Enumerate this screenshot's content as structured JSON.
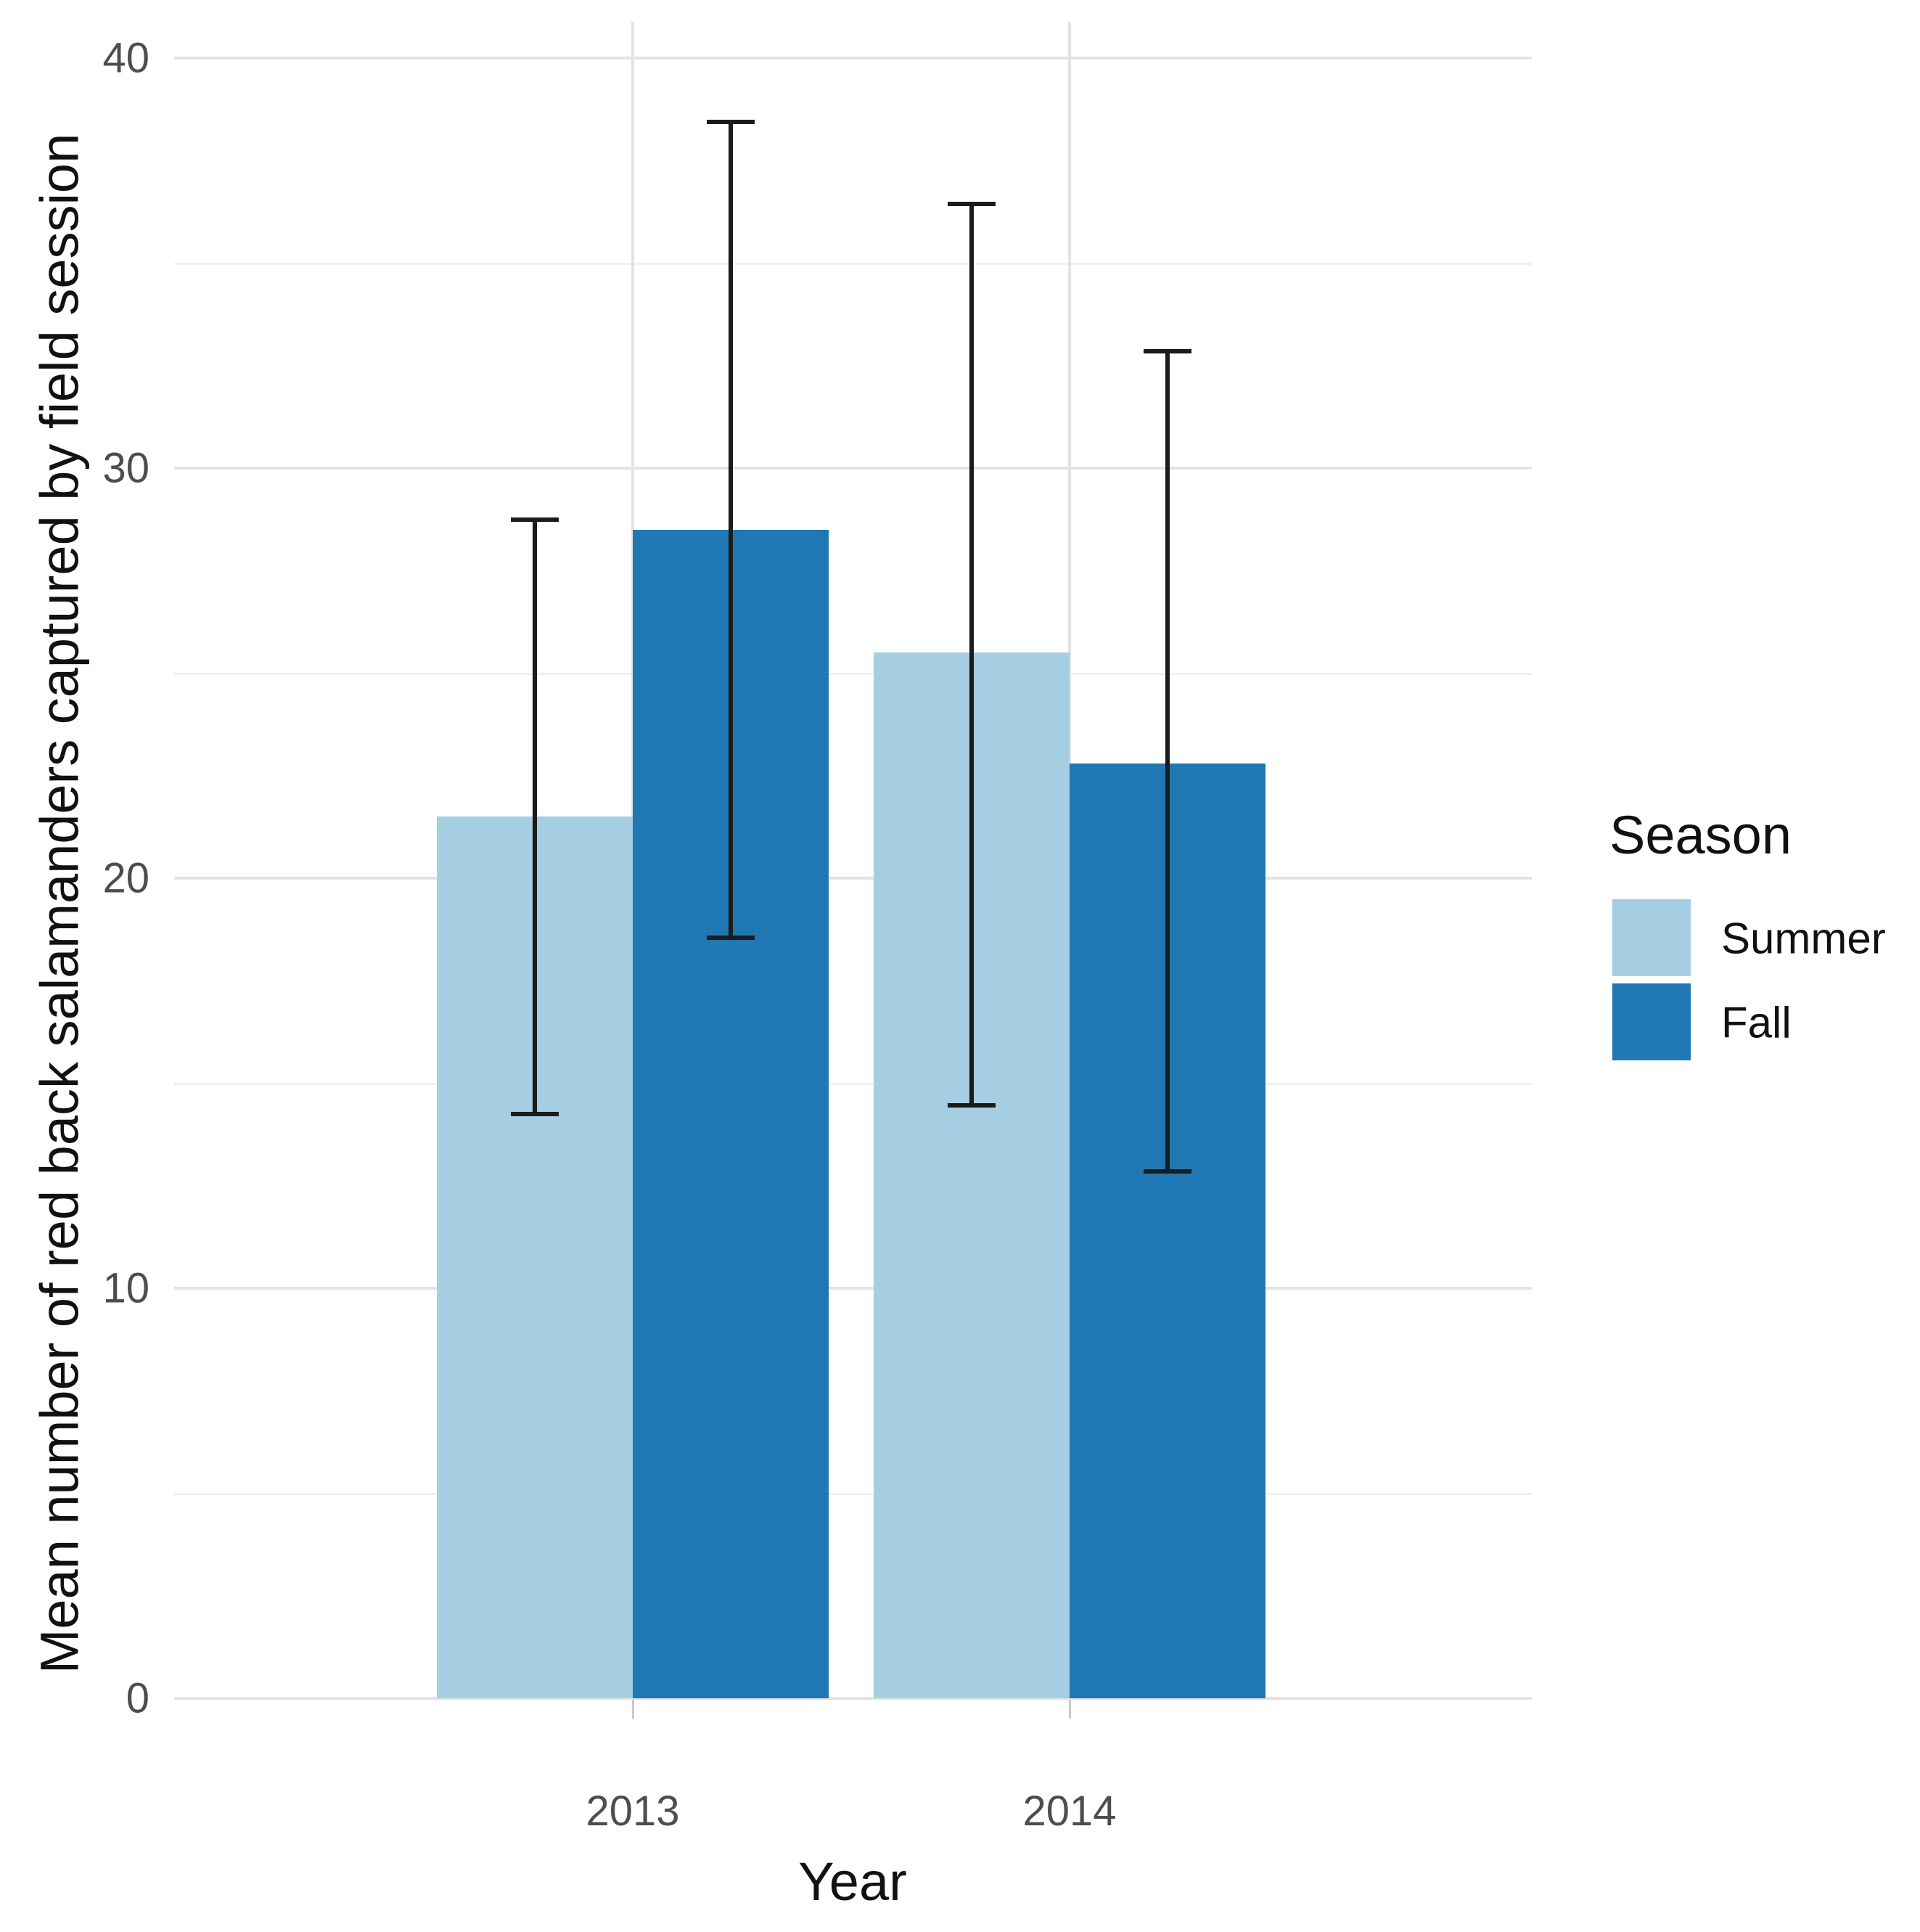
{
  "chart_data": {
    "type": "bar",
    "title": "",
    "xlabel": "Year",
    "ylabel": "Mean number of red back salamanders captured by field session",
    "categories": [
      "2013",
      "2014"
    ],
    "series": [
      {
        "name": "Summer",
        "color": "#A6CEE3",
        "values": [
          21.5,
          25.5
        ],
        "error_low": [
          14.2,
          14.4
        ],
        "error_high": [
          28.8,
          36.5
        ]
      },
      {
        "name": "Fall",
        "color": "#1F78B4",
        "values": [
          28.5,
          22.8
        ],
        "error_low": [
          18.5,
          12.8
        ],
        "error_high": [
          38.5,
          32.9
        ]
      }
    ],
    "y_ticks": [
      0,
      10,
      20,
      30,
      40
    ],
    "y_minor_ticks": [
      5,
      15,
      25,
      35
    ],
    "ylim": [
      0,
      40
    ],
    "grid": true,
    "legend_title": "Season",
    "legend_position": "right",
    "error_bar_color": "#1b1b1b",
    "axis_text_color": "#4d4d4d"
  }
}
